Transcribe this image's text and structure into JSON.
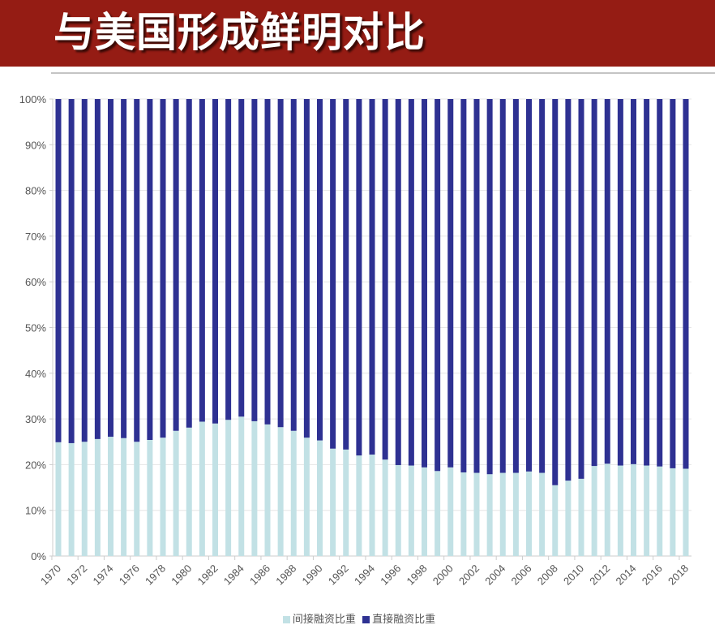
{
  "header": {
    "title": "与美国形成鲜明对比"
  },
  "chart_data": {
    "type": "bar",
    "stacked": true,
    "normalized": true,
    "categories": [
      "1970",
      "1971",
      "1972",
      "1973",
      "1974",
      "1975",
      "1976",
      "1977",
      "1978",
      "1979",
      "1980",
      "1981",
      "1982",
      "1983",
      "1984",
      "1985",
      "1986",
      "1987",
      "1988",
      "1989",
      "1990",
      "1991",
      "1992",
      "1993",
      "1994",
      "1995",
      "1996",
      "1997",
      "1998",
      "1999",
      "2000",
      "2001",
      "2002",
      "2003",
      "2004",
      "2005",
      "2006",
      "2007",
      "2008",
      "2009",
      "2010",
      "2011",
      "2012",
      "2013",
      "2014",
      "2015",
      "2016",
      "2017",
      "2018"
    ],
    "xtick_labels": [
      "1970",
      "1972",
      "1974",
      "1976",
      "1978",
      "1980",
      "1982",
      "1984",
      "1986",
      "1988",
      "1990",
      "1992",
      "1994",
      "1996",
      "1998",
      "2000",
      "2002",
      "2004",
      "2006",
      "2008",
      "2010",
      "2012",
      "2014",
      "2016",
      "2018"
    ],
    "series": [
      {
        "name": "间接融资比重",
        "color": "#c2e1e5",
        "values": [
          24.9,
          24.7,
          25.0,
          25.6,
          26.1,
          25.8,
          25.0,
          25.4,
          25.9,
          27.4,
          28.1,
          29.4,
          29.0,
          29.8,
          30.5,
          29.5,
          28.8,
          28.2,
          27.4,
          25.9,
          25.3,
          23.5,
          23.3,
          22.0,
          22.2,
          21.1,
          19.9,
          19.8,
          19.4,
          18.6,
          19.4,
          18.3,
          18.2,
          17.9,
          18.2,
          18.2,
          18.5,
          18.2,
          15.5,
          16.5,
          16.9,
          19.7,
          20.2,
          19.8,
          20.1,
          19.8,
          19.6,
          19.2,
          19.1
        ]
      },
      {
        "name": "直接融资比重",
        "color": "#2e3192",
        "values": [
          75.1,
          75.3,
          75.0,
          74.4,
          73.9,
          74.2,
          75.0,
          74.6,
          74.1,
          72.6,
          71.9,
          70.6,
          71.0,
          70.2,
          69.5,
          70.5,
          71.2,
          71.8,
          72.6,
          74.1,
          74.7,
          76.5,
          76.7,
          78.0,
          77.8,
          78.9,
          80.1,
          80.2,
          80.6,
          81.4,
          80.6,
          81.7,
          81.8,
          82.1,
          81.8,
          81.8,
          81.5,
          81.8,
          84.5,
          83.5,
          83.1,
          80.3,
          79.8,
          80.2,
          79.9,
          80.2,
          80.4,
          80.8,
          80.9
        ]
      }
    ],
    "ylim": [
      0,
      100
    ],
    "yticks": [
      "0%",
      "10%",
      "20%",
      "30%",
      "40%",
      "50%",
      "60%",
      "70%",
      "80%",
      "90%",
      "100%"
    ],
    "grid": true,
    "legend": "bottom"
  }
}
